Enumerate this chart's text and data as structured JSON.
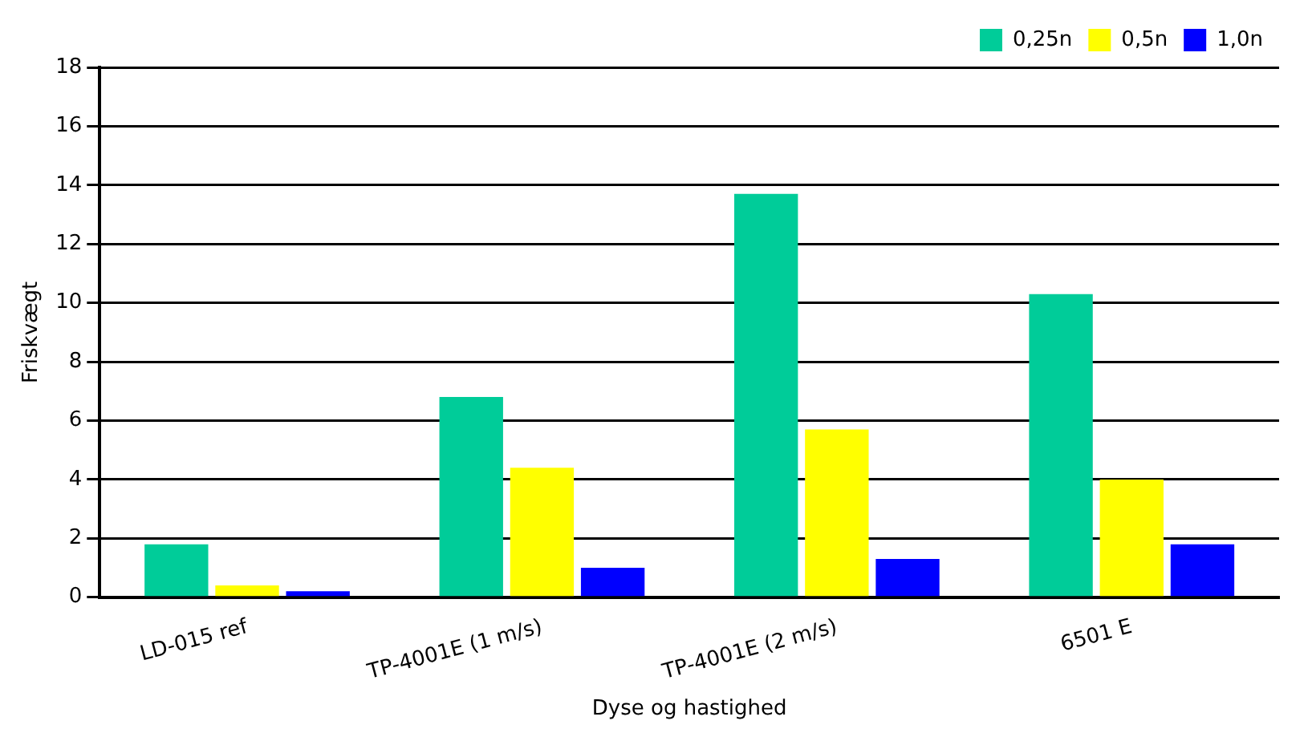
{
  "chart_data": {
    "type": "bar",
    "xlabel": "Dyse og hastighed",
    "ylabel": "Friskvægt",
    "categories": [
      "LD-015 ref",
      "TP-4001E (1 m/s)",
      "TP-4001E (2 m/s)",
      "6501 E"
    ],
    "series": [
      {
        "name": "0,25n",
        "color": "#00cc99",
        "values": [
          1.8,
          6.8,
          13.7,
          10.3
        ]
      },
      {
        "name": "0,5n",
        "color": "#ffff00",
        "values": [
          0.4,
          4.4,
          5.7,
          4.0
        ]
      },
      {
        "name": "1,0n",
        "color": "#0000ff",
        "values": [
          0.2,
          1.0,
          1.3,
          1.8
        ]
      }
    ],
    "ylim": [
      0,
      18
    ],
    "yticks": [
      0,
      2,
      4,
      6,
      8,
      10,
      12,
      14,
      16,
      18
    ],
    "grid": "y",
    "legend": "top right"
  }
}
